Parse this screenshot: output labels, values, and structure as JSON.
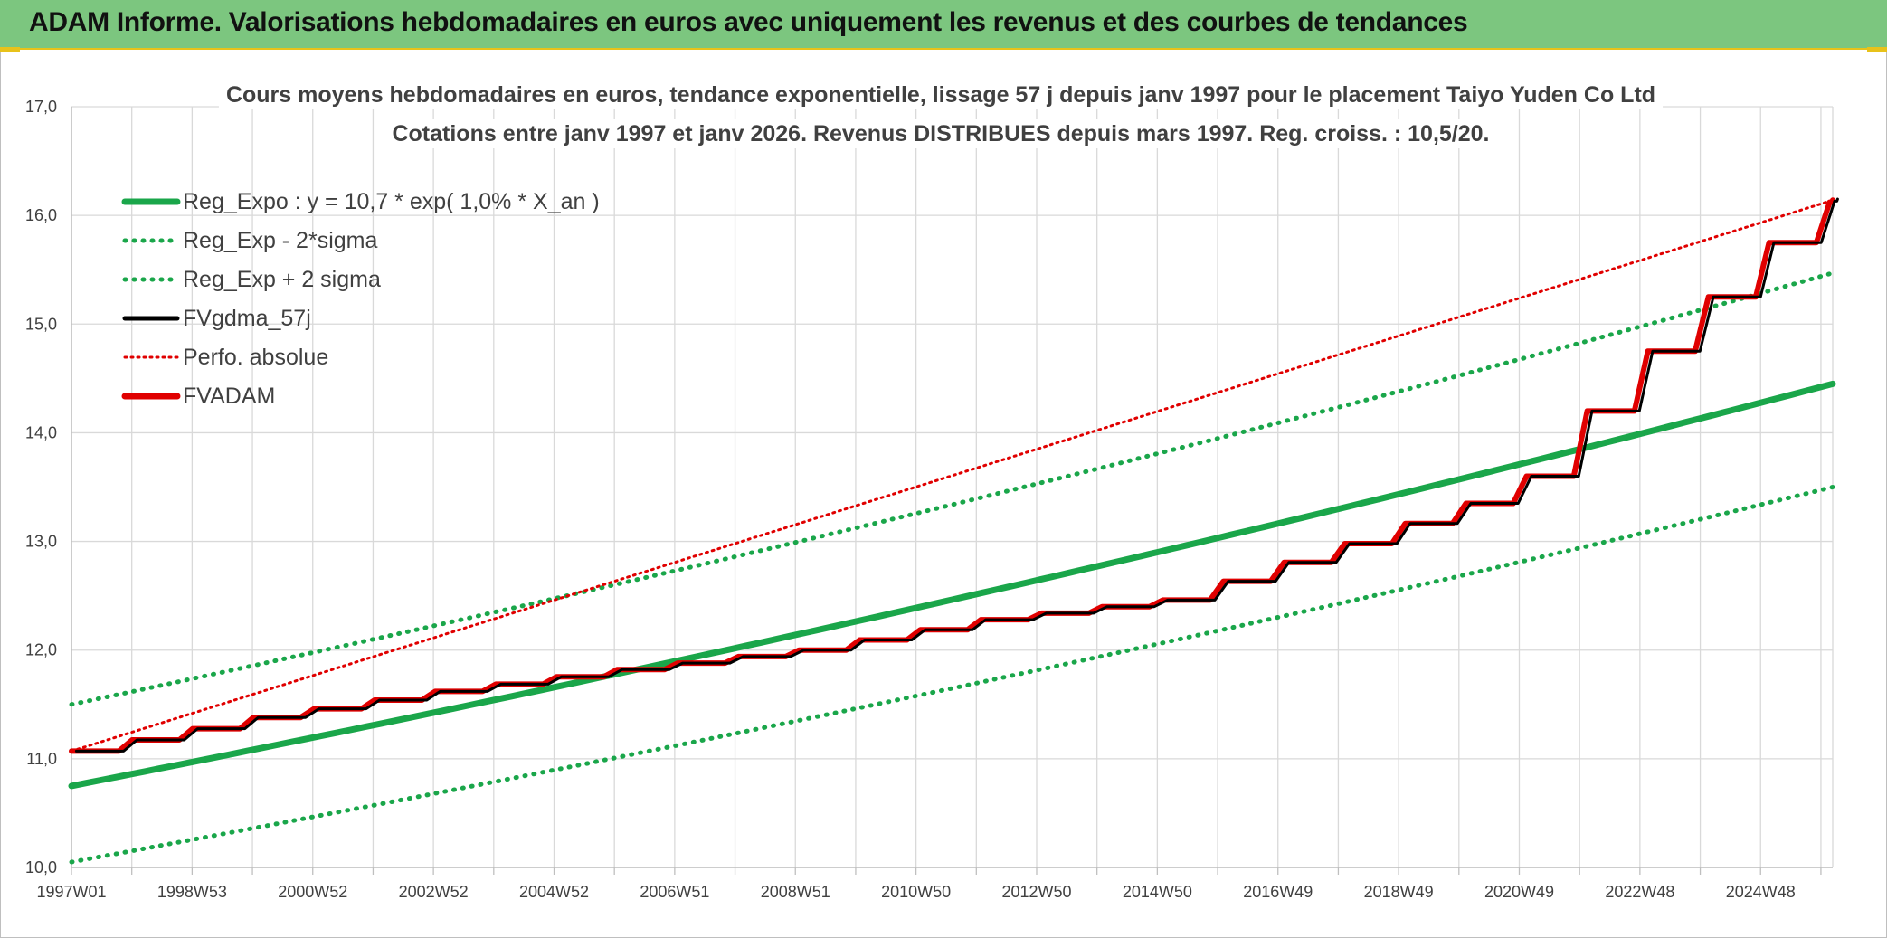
{
  "header": {
    "title": "ADAM Informe. Valorisations hebdomadaires en euros avec uniquement les revenus et des courbes de tendances"
  },
  "chart_data": {
    "type": "line",
    "title": "Cours moyens hebdomadaires en euros, tendance exponentielle, lissage 57 j depuis janv 1997 pour le placement Taiyo Yuden Co Ltd",
    "subtitle": "Cotations entre janv 1997 et janv 2026. Revenus DISTRIBUES depuis mars 1997. Reg. croiss. : 10,5/20.",
    "x_tick_labels": [
      "1997W01",
      "1998W53",
      "2000W52",
      "2002W52",
      "2004W52",
      "2006W51",
      "2008W51",
      "2010W50",
      "2012W50",
      "2014W50",
      "2016W49",
      "2018W49",
      "2020W49",
      "2022W48",
      "2024W48"
    ],
    "x_range_years": [
      1997.0,
      2026.05
    ],
    "ylim": [
      10.0,
      17.0
    ],
    "y_ticks": [
      "10,0",
      "11,0",
      "12,0",
      "13,0",
      "14,0",
      "15,0",
      "16,0",
      "17,0"
    ],
    "y_tick_values": [
      10,
      11,
      12,
      13,
      14,
      15,
      16,
      17
    ],
    "grid": true,
    "legend_position": "top-left",
    "series": [
      {
        "name": "Reg_Expo : y = 10,7 * exp( 1,0% *  X_an )",
        "style": "solid",
        "color": "#1aa64a",
        "x": [
          1997,
          2026.05
        ],
        "values": [
          10.75,
          14.45
        ],
        "shape": "exponential"
      },
      {
        "name": "Reg_Exp - 2*sigma",
        "style": "dotted",
        "color": "#1aa64a",
        "x": [
          1997,
          2026.05
        ],
        "values": [
          10.05,
          13.5
        ],
        "shape": "exponential"
      },
      {
        "name": "Reg_Exp + 2 sigma",
        "style": "dotted",
        "color": "#1aa64a",
        "x": [
          1997,
          2026.05
        ],
        "values": [
          11.5,
          15.47
        ],
        "shape": "exponential"
      },
      {
        "name": "FVgdma_57j",
        "style": "solid",
        "color": "#000000",
        "x": [
          1997.0,
          2000.0,
          2003.0,
          2006.0,
          2009.0,
          2012.0,
          2015.0,
          2018.0,
          2020.0,
          2021.0,
          2022.0,
          2023.0,
          2024.0,
          2025.0,
          2026.05
        ],
        "values": [
          11.07,
          11.38,
          11.62,
          11.82,
          12.0,
          12.28,
          12.46,
          12.98,
          13.35,
          13.6,
          14.2,
          14.75,
          15.25,
          15.75,
          16.15
        ]
      },
      {
        "name": "Perfo. absolue",
        "style": "dotted",
        "color": "#e00000",
        "x": [
          1997.0,
          2026.05
        ],
        "values": [
          11.07,
          16.14
        ]
      },
      {
        "name": "FVADAM",
        "style": "solid",
        "color": "#e00000",
        "x": [
          1997.0,
          2000.0,
          2003.0,
          2006.0,
          2009.0,
          2012.0,
          2015.0,
          2018.0,
          2020.0,
          2021.0,
          2022.0,
          2023.0,
          2024.0,
          2025.0,
          2026.05
        ],
        "values": [
          11.07,
          11.38,
          11.62,
          11.82,
          12.0,
          12.28,
          12.46,
          12.98,
          13.35,
          13.6,
          14.2,
          14.75,
          15.25,
          15.75,
          16.14
        ]
      }
    ]
  }
}
